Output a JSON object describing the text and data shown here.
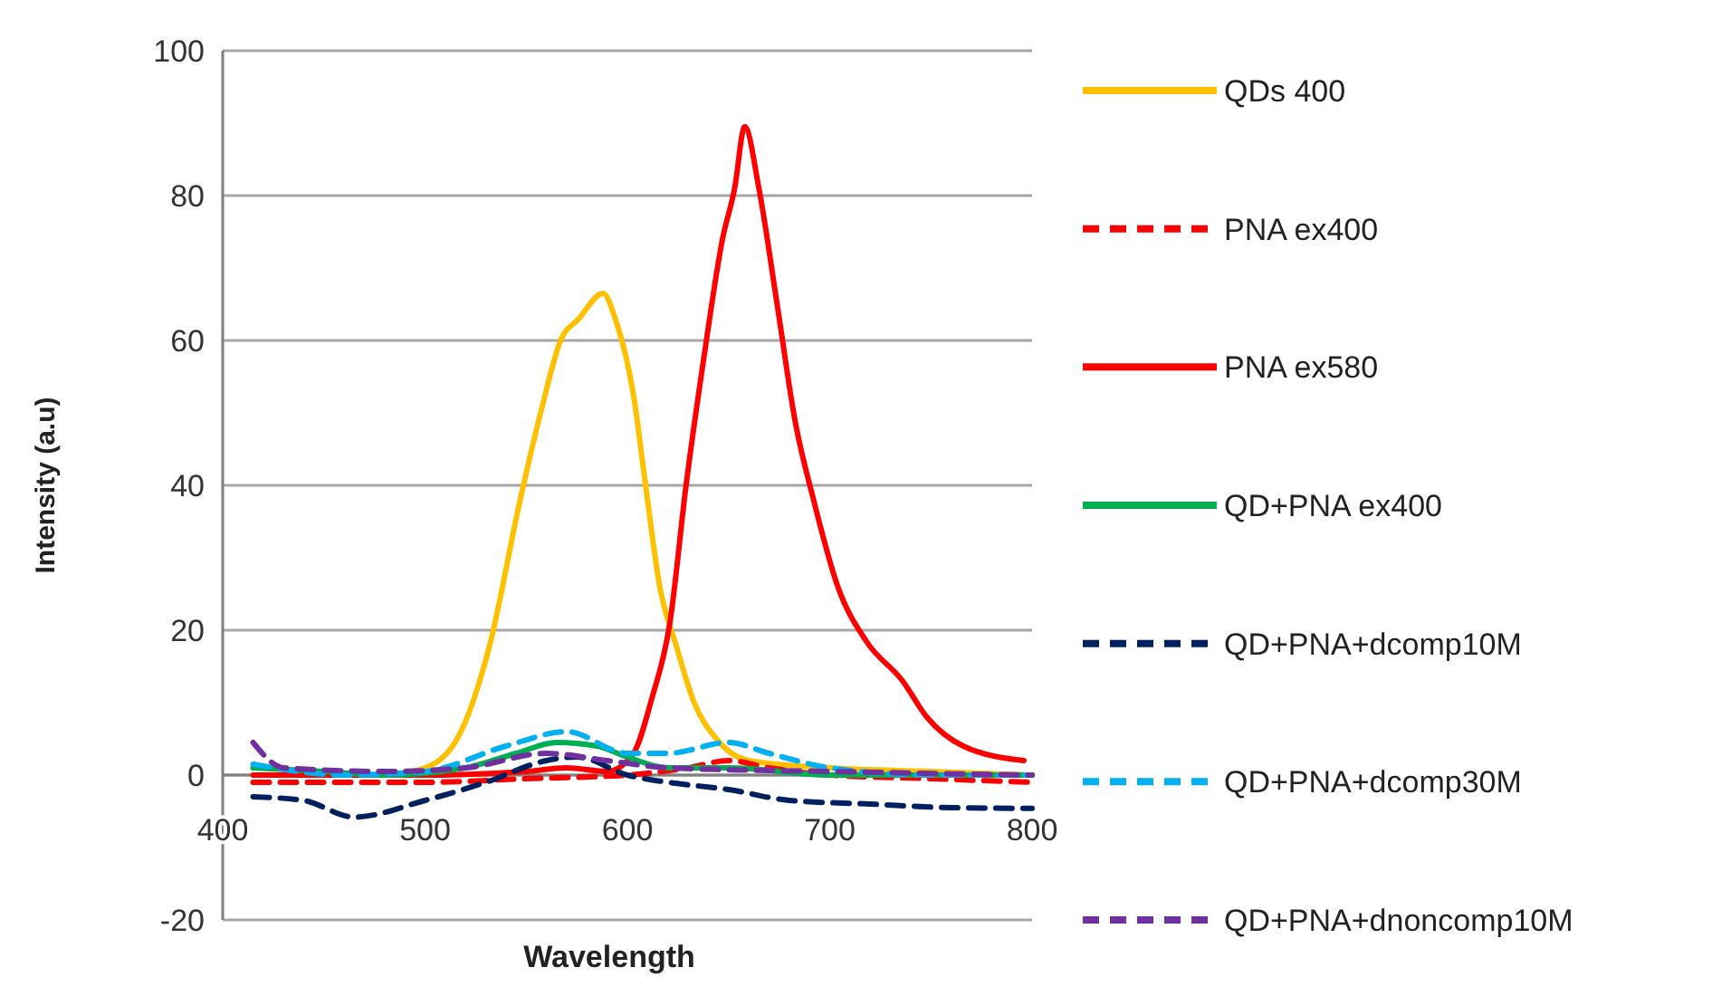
{
  "chart_data": {
    "type": "line",
    "xlabel": "Wavelength",
    "ylabel": "Intensity (a.u)",
    "xlim": [
      400,
      800
    ],
    "ylim": [
      -20,
      100
    ],
    "xticks": [
      400,
      500,
      600,
      700,
      800
    ],
    "yticks": [
      -20,
      0,
      20,
      40,
      60,
      80,
      100
    ],
    "grid": "y",
    "legend": "right",
    "marker": "none",
    "series": [
      {
        "name": "QDs 400",
        "color": "#ffc000",
        "line_style": "solid",
        "x": [
          480,
          500,
          517,
          532,
          547,
          558,
          567,
          576,
          588,
          594,
          603,
          609,
          616,
          624,
          633,
          644,
          660,
          700,
          750,
          800
        ],
        "values": [
          0,
          1,
          5.6,
          18,
          38,
          51,
          60,
          63,
          66.5,
          63,
          52.5,
          40,
          26,
          18,
          10,
          5,
          2,
          1,
          0.5,
          0
        ]
      },
      {
        "name": "PNA ex400",
        "color": "#ff0000",
        "line_style": "dashed",
        "x": [
          415,
          450,
          500,
          550,
          600,
          630,
          650,
          670,
          700,
          750,
          800
        ],
        "values": [
          -1,
          -1,
          -1,
          -0.5,
          0,
          1,
          2,
          1,
          0,
          -0.5,
          -1
        ]
      },
      {
        "name": "PNA ex580",
        "color": "#ff0000",
        "line_style": "solid",
        "x": [
          415,
          450,
          500,
          550,
          570,
          590,
          603,
          612,
          621,
          629,
          638,
          647,
          653,
          658,
          665,
          674,
          683,
          692,
          704,
          718,
          736,
          748,
          766,
          796
        ],
        "values": [
          0,
          0,
          0,
          0.5,
          1,
          0.5,
          3,
          10.5,
          21,
          40,
          58,
          74,
          81,
          89.5,
          81,
          65,
          48.7,
          38,
          26,
          18.5,
          13,
          8,
          4,
          2
        ]
      },
      {
        "name": "QD+PNA ex400",
        "color": "#00b050",
        "line_style": "solid",
        "x": [
          415,
          450,
          480,
          520,
          545,
          565,
          585,
          600,
          620,
          650,
          700,
          750,
          800
        ],
        "values": [
          1,
          0.5,
          0,
          1,
          3,
          4.5,
          4,
          2.5,
          1,
          1,
          0,
          0,
          0
        ]
      },
      {
        "name": "QD+PNA+dcomp10M",
        "color": "#002060",
        "line_style": "dashed",
        "x": [
          415,
          440,
          465,
          500,
          530,
          560,
          575,
          600,
          620,
          650,
          680,
          720,
          760,
          800
        ],
        "values": [
          -3,
          -3.5,
          -5.8,
          -3.5,
          -1,
          2,
          2.5,
          0,
          -1,
          -2,
          -3.5,
          -4,
          -4.5,
          -4.6
        ]
      },
      {
        "name": "QD+PNA+dcomp30M",
        "color": "#00b0f0",
        "line_style": "dashed",
        "x": [
          415,
          460,
          500,
          540,
          570,
          600,
          620,
          650,
          670,
          700,
          750,
          800
        ],
        "values": [
          1.5,
          0,
          0.5,
          4,
          6,
          3,
          3,
          4.5,
          3,
          1,
          0,
          0
        ]
      },
      {
        "name": "QD+PNA+dnoncomp10M",
        "color": "#7030a0",
        "line_style": "dashed",
        "x": [
          415,
          430,
          480,
          520,
          560,
          590,
          620,
          700,
          800
        ],
        "values": [
          4.5,
          1,
          0.5,
          1,
          3,
          2,
          1,
          0.5,
          0
        ]
      }
    ]
  }
}
